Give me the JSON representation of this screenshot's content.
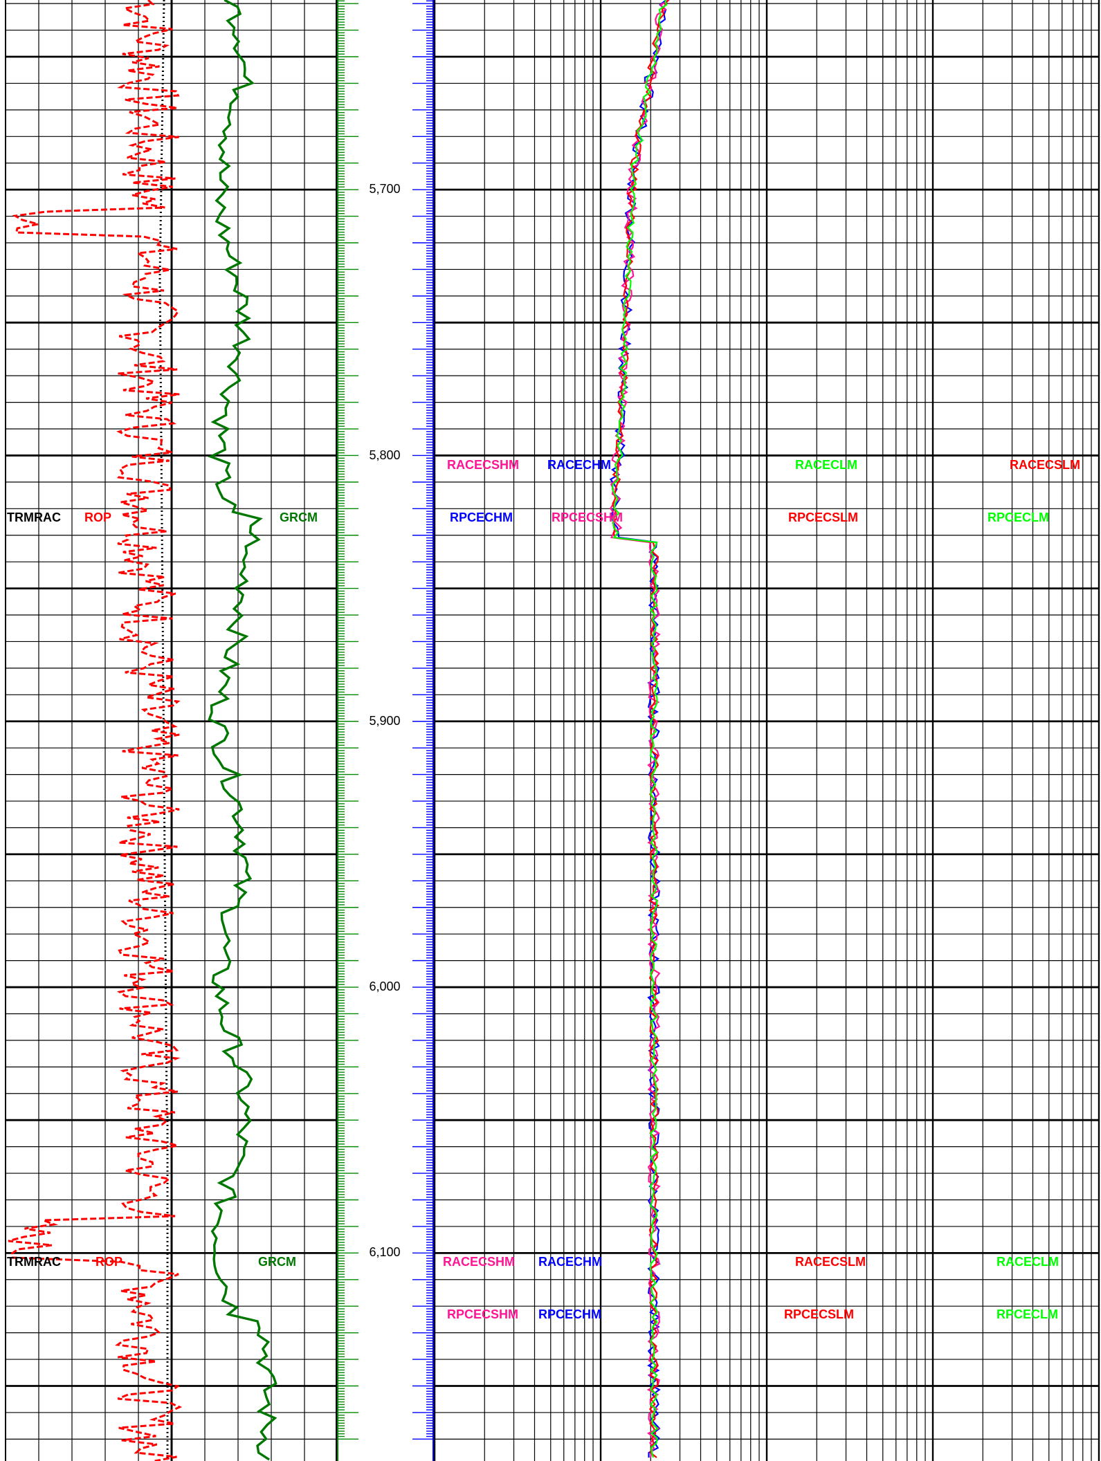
{
  "chart_data": {
    "type": "well-log",
    "depth_labels": [
      "5,700",
      "5,800",
      "5,900",
      "6,000",
      "6,100"
    ],
    "depth_range": [
      5620,
      6168
    ],
    "track1_curves": [
      {
        "name": "TRMRAC",
        "color": "#000000",
        "style": "dotted"
      },
      {
        "name": "ROP",
        "color": "#ff0000",
        "style": "dashed"
      },
      {
        "name": "GRCM",
        "color": "#007700",
        "style": "solid"
      }
    ],
    "track2_curves": [
      {
        "name": "RACECSHM",
        "color": "#ff1493"
      },
      {
        "name": "RACECHM",
        "color": "#0000ff"
      },
      {
        "name": "RPCECHM",
        "color": "#0000ff"
      },
      {
        "name": "RPCECSHM",
        "color": "#ff1493"
      },
      {
        "name": "RACECLM",
        "color": "#00ff00"
      },
      {
        "name": "RACECSLM",
        "color": "#ff0000"
      },
      {
        "name": "RPCECSLM",
        "color": "#ff0000"
      },
      {
        "name": "RPCECLM",
        "color": "#00ff00"
      }
    ],
    "scale": "log",
    "grid": true
  },
  "header_upper": {
    "t1": [
      "TRMRAC",
      "ROP",
      "GRCM"
    ],
    "t2_row1": [
      "RACECSHM",
      "RACECHM",
      "RACECLM",
      "RACECSLM"
    ],
    "t2_row2": [
      "RPCECHM",
      "RPCECSHM",
      "RPCECSLM",
      "RPCECLM"
    ]
  },
  "header_lower": {
    "t1": [
      "TRMRAC",
      "ROP",
      "GRCM"
    ],
    "t2_row1": [
      "RACECSHM",
      "RACECHM",
      "RACECSLM",
      "RACECLM"
    ],
    "t2_row2": [
      "RPCECSHM",
      "RPCECHM",
      "RPCECSLM",
      "RPCECLM"
    ]
  },
  "colors": {
    "trmrac": "#000000",
    "rop": "#ff0000",
    "grcm": "#007700",
    "pink": "#ff1493",
    "blue": "#0000ff",
    "red": "#ff0000",
    "green": "#00ff00",
    "depth_track_green": "#008800",
    "depth_track_blue": "#0000ff"
  }
}
